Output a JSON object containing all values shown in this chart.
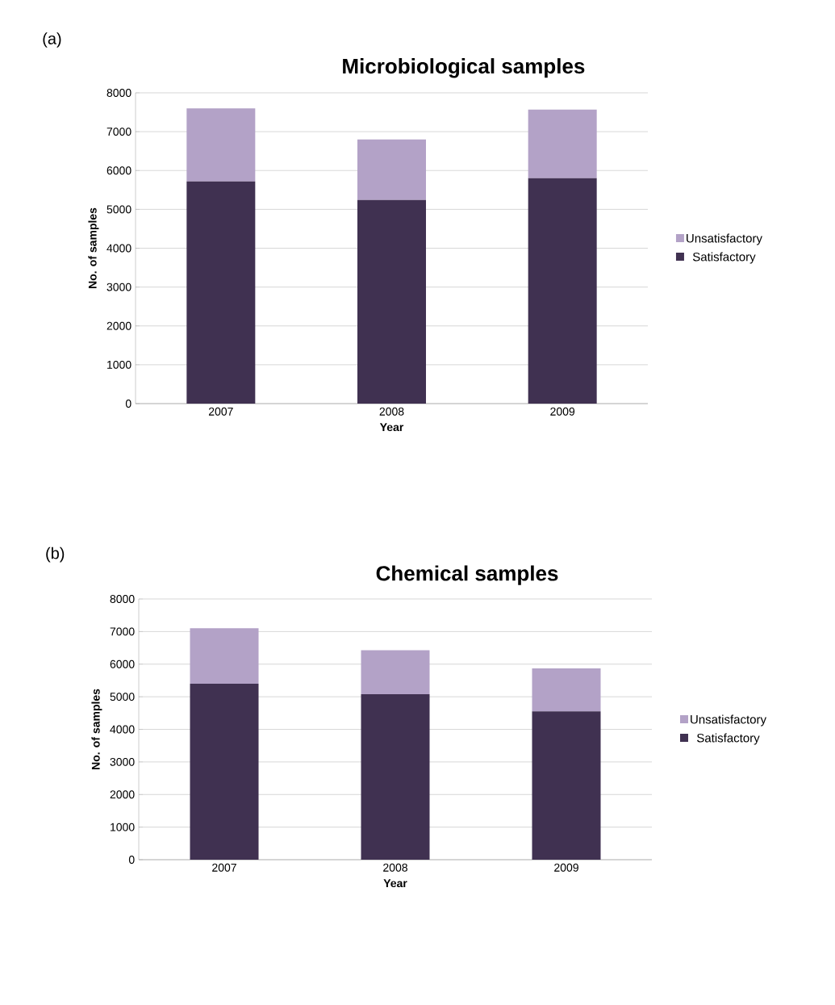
{
  "chart_data": [
    {
      "type": "bar",
      "title": "Microbiological samples",
      "xlabel": "Year",
      "ylabel": "No. of samples",
      "annotations": [
        "(a)"
      ],
      "categories": [
        "2007",
        "2008",
        "2009"
      ],
      "stacked": true,
      "series": [
        {
          "name": "Satisfactory",
          "color": "#403151",
          "values": [
            5720,
            5240,
            5800
          ]
        },
        {
          "name": "Unsatisfactory",
          "color": "#b3a2c7",
          "values": [
            1880,
            1560,
            1770
          ]
        }
      ],
      "ylim": [
        0,
        8000
      ],
      "yticks": [
        0,
        1000,
        2000,
        3000,
        4000,
        5000,
        6000,
        7000,
        8000
      ],
      "grid": "y",
      "legend": "right"
    },
    {
      "type": "bar",
      "title": "Chemical samples",
      "xlabel": "Year",
      "ylabel": "No. of samples",
      "annotations": [
        "(b)"
      ],
      "categories": [
        "2007",
        "2008",
        "2009"
      ],
      "stacked": true,
      "series": [
        {
          "name": "Satisfactory",
          "color": "#403151",
          "values": [
            5400,
            5080,
            4550
          ]
        },
        {
          "name": "Unsatisfactory",
          "color": "#b3a2c7",
          "values": [
            1700,
            1350,
            1320
          ]
        }
      ],
      "ylim": [
        0,
        8000
      ],
      "yticks": [
        0,
        1000,
        2000,
        3000,
        4000,
        5000,
        6000,
        7000,
        8000
      ],
      "grid": "y",
      "legend": "right"
    }
  ]
}
